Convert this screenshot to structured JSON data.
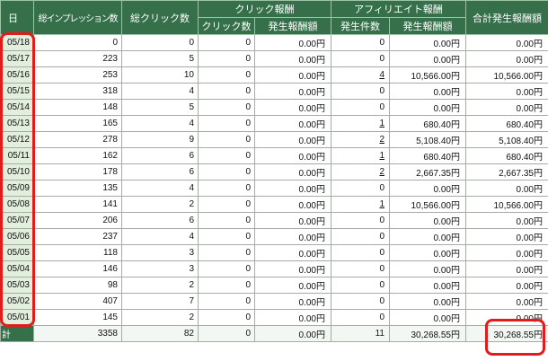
{
  "colors": {
    "header_bg": "#35704a",
    "date_cell_bg": "#e2efdc",
    "highlight": "#e21b1b"
  },
  "header": {
    "date": "日",
    "impressions": "総インプレッション数",
    "clicks": "総クリック数",
    "click_reward_group": "クリック報酬",
    "click_count": "クリック数",
    "click_amount": "発生報酬額",
    "affiliate_reward_group": "アフィリエイト報酬",
    "affiliate_count": "発生件数",
    "affiliate_amount": "発生報酬額",
    "total_amount": "合計発生報酬額"
  },
  "rows": [
    {
      "date": "05/18",
      "impressions": "0",
      "clicks": "0",
      "click_count": "0",
      "click_amount": "0.00円",
      "affiliate_count": "0",
      "affiliate_amount": "0.00円",
      "total_amount": "0.00円"
    },
    {
      "date": "05/17",
      "impressions": "223",
      "clicks": "5",
      "click_count": "0",
      "click_amount": "0.00円",
      "affiliate_count": "0",
      "affiliate_amount": "0.00円",
      "total_amount": "0.00円"
    },
    {
      "date": "05/16",
      "impressions": "253",
      "clicks": "10",
      "click_count": "0",
      "click_amount": "0.00円",
      "affiliate_count": "4",
      "affiliate_amount": "10,566.00円",
      "total_amount": "10,566.00円"
    },
    {
      "date": "05/15",
      "impressions": "318",
      "clicks": "4",
      "click_count": "0",
      "click_amount": "0.00円",
      "affiliate_count": "0",
      "affiliate_amount": "0.00円",
      "total_amount": "0.00円"
    },
    {
      "date": "05/14",
      "impressions": "148",
      "clicks": "5",
      "click_count": "0",
      "click_amount": "0.00円",
      "affiliate_count": "0",
      "affiliate_amount": "0.00円",
      "total_amount": "0.00円"
    },
    {
      "date": "05/13",
      "impressions": "165",
      "clicks": "4",
      "click_count": "0",
      "click_amount": "0.00円",
      "affiliate_count": "1",
      "affiliate_amount": "680.40円",
      "total_amount": "680.40円"
    },
    {
      "date": "05/12",
      "impressions": "278",
      "clicks": "9",
      "click_count": "0",
      "click_amount": "0.00円",
      "affiliate_count": "2",
      "affiliate_amount": "5,108.40円",
      "total_amount": "5,108.40円"
    },
    {
      "date": "05/11",
      "impressions": "162",
      "clicks": "6",
      "click_count": "0",
      "click_amount": "0.00円",
      "affiliate_count": "1",
      "affiliate_amount": "680.40円",
      "total_amount": "680.40円"
    },
    {
      "date": "05/10",
      "impressions": "178",
      "clicks": "6",
      "click_count": "0",
      "click_amount": "0.00円",
      "affiliate_count": "2",
      "affiliate_amount": "2,667.35円",
      "total_amount": "2,667.35円"
    },
    {
      "date": "05/09",
      "impressions": "135",
      "clicks": "4",
      "click_count": "0",
      "click_amount": "0.00円",
      "affiliate_count": "0",
      "affiliate_amount": "0.00円",
      "total_amount": "0.00円"
    },
    {
      "date": "05/08",
      "impressions": "141",
      "clicks": "2",
      "click_count": "0",
      "click_amount": "0.00円",
      "affiliate_count": "1",
      "affiliate_amount": "10,566.00円",
      "total_amount": "10,566.00円"
    },
    {
      "date": "05/07",
      "impressions": "206",
      "clicks": "6",
      "click_count": "0",
      "click_amount": "0.00円",
      "affiliate_count": "0",
      "affiliate_amount": "0.00円",
      "total_amount": "0.00円"
    },
    {
      "date": "05/06",
      "impressions": "237",
      "clicks": "4",
      "click_count": "0",
      "click_amount": "0.00円",
      "affiliate_count": "0",
      "affiliate_amount": "0.00円",
      "total_amount": "0.00円"
    },
    {
      "date": "05/05",
      "impressions": "118",
      "clicks": "3",
      "click_count": "0",
      "click_amount": "0.00円",
      "affiliate_count": "0",
      "affiliate_amount": "0.00円",
      "total_amount": "0.00円"
    },
    {
      "date": "05/04",
      "impressions": "146",
      "clicks": "3",
      "click_count": "0",
      "click_amount": "0.00円",
      "affiliate_count": "0",
      "affiliate_amount": "0.00円",
      "total_amount": "0.00円"
    },
    {
      "date": "05/03",
      "impressions": "98",
      "clicks": "2",
      "click_count": "0",
      "click_amount": "0.00円",
      "affiliate_count": "0",
      "affiliate_amount": "0.00円",
      "total_amount": "0.00円"
    },
    {
      "date": "05/02",
      "impressions": "407",
      "clicks": "7",
      "click_count": "0",
      "click_amount": "0.00円",
      "affiliate_count": "0",
      "affiliate_amount": "0.00円",
      "total_amount": "0.00円"
    },
    {
      "date": "05/01",
      "impressions": "145",
      "clicks": "2",
      "click_count": "0",
      "click_amount": "0.00円",
      "affiliate_count": "0",
      "affiliate_amount": "0.00円",
      "total_amount": "0.00円"
    }
  ],
  "total": {
    "label": "計",
    "impressions": "3358",
    "clicks": "82",
    "click_count": "0",
    "click_amount": "0.00円",
    "affiliate_count": "11",
    "affiliate_amount": "30,268.55円",
    "total_amount": "30,268.55円"
  }
}
